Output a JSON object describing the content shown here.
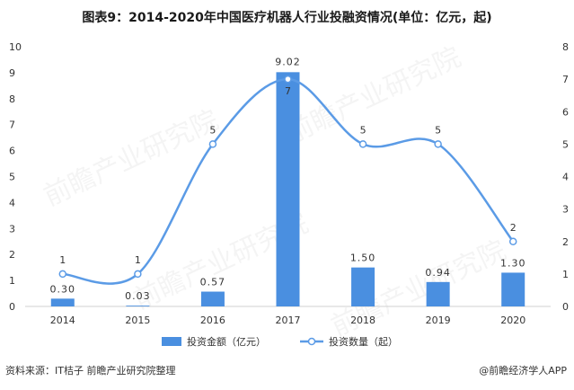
{
  "title": "图表9：2014-2020年中国医疗机器人行业投融资情况(单位：亿元，起)",
  "source": "资料来源：IT桔子 前瞻产业研究院整理",
  "brand": "@前瞻经济学人APP",
  "watermark": "前瞻产业研究院",
  "colors": {
    "bar": "#4a8fe0",
    "line": "#5b9be6",
    "text": "#333333"
  },
  "chart_data": {
    "type": "bar+line",
    "categories": [
      "2014",
      "2015",
      "2016",
      "2017",
      "2018",
      "2019",
      "2020"
    ],
    "series": [
      {
        "name": "投资金额（亿元）",
        "type": "bar",
        "axis": "left",
        "values": [
          0.3,
          0.03,
          0.57,
          9.02,
          1.5,
          0.94,
          1.3
        ],
        "labels": [
          "0.30",
          "0.03",
          "0.57",
          "9.02",
          "1.50",
          "0.94",
          "1.30"
        ]
      },
      {
        "name": "投资数量（起）",
        "type": "line",
        "axis": "right",
        "values": [
          1,
          1,
          5,
          7,
          5,
          5,
          2
        ],
        "labels": [
          "1",
          "1",
          "5",
          "7",
          "5",
          "5",
          "2"
        ]
      }
    ],
    "y_left": {
      "min": 0,
      "max": 10,
      "ticks": [
        "0",
        "1",
        "2",
        "3",
        "4",
        "5",
        "6",
        "7",
        "8",
        "9",
        "10"
      ]
    },
    "y_right": {
      "min": 0,
      "max": 8,
      "ticks": [
        "0",
        "1",
        "2",
        "3",
        "4",
        "5",
        "6",
        "7",
        "8"
      ]
    },
    "grid": false,
    "legend": "bottom"
  }
}
